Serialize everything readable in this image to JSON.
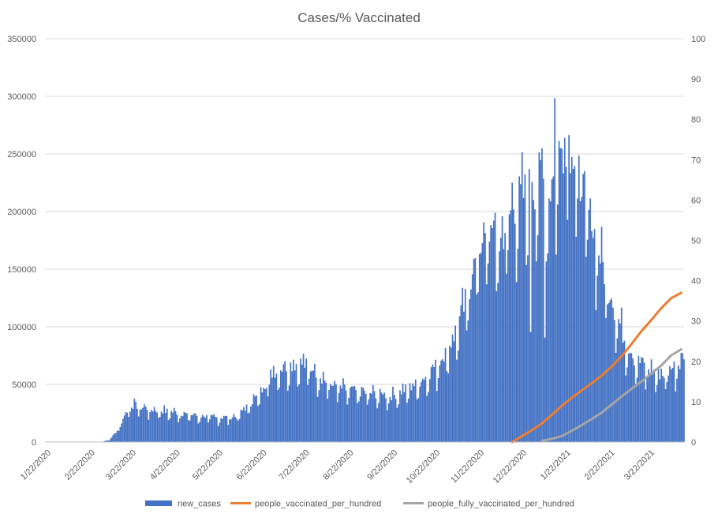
{
  "chart_data": {
    "type": "bar",
    "title": "Cases/% Vaccinated",
    "xlabel": "",
    "ylabel": "",
    "y_left_lim": [
      0,
      350000
    ],
    "y_right_lim": [
      0,
      100
    ],
    "y_left_ticks": [
      "0",
      "50000",
      "100000",
      "150000",
      "200000",
      "250000",
      "300000",
      "350000"
    ],
    "y_right_ticks": [
      "0",
      "10",
      "20",
      "30",
      "40",
      "50",
      "60",
      "70",
      "80",
      "90",
      "100"
    ],
    "x_tick_labels": [
      "1/22/2020",
      "2/22/2020",
      "3/22/2020",
      "4/22/2020",
      "5/22/2020",
      "6/22/2020",
      "7/22/2020",
      "8/22/2020",
      "9/22/2020",
      "10/22/2020",
      "11/22/2020",
      "12/22/2020",
      "1/22/2021",
      "2/22/2021",
      "3/22/2021"
    ],
    "x_range_days": [
      0,
      450
    ],
    "grid": "horizontal",
    "legend_position": "bottom",
    "series": [
      {
        "name": "new_cases",
        "kind": "bar",
        "axis": "left",
        "color": "#4472C4",
        "weekly_points": [
          [
            0,
            0
          ],
          [
            40,
            0
          ],
          [
            45,
            2000
          ],
          [
            50,
            8000
          ],
          [
            55,
            20000
          ],
          [
            60,
            32000
          ],
          [
            66,
            31000
          ],
          [
            75,
            28000
          ],
          [
            90,
            26000
          ],
          [
            105,
            23000
          ],
          [
            120,
            21000
          ],
          [
            135,
            22000
          ],
          [
            150,
            40000
          ],
          [
            160,
            60000
          ],
          [
            170,
            66000
          ],
          [
            180,
            68000
          ],
          [
            190,
            62000
          ],
          [
            200,
            50000
          ],
          [
            215,
            44000
          ],
          [
            230,
            42000
          ],
          [
            245,
            40000
          ],
          [
            255,
            46000
          ],
          [
            265,
            52000
          ],
          [
            275,
            65000
          ],
          [
            285,
            82000
          ],
          [
            295,
            115000
          ],
          [
            305,
            165000
          ],
          [
            315,
            185000
          ],
          [
            320,
            170000
          ],
          [
            330,
            205000
          ],
          [
            340,
            215000
          ],
          [
            350,
            228000
          ],
          [
            355,
            210000
          ],
          [
            362,
            250000
          ],
          [
            367,
            265000
          ],
          [
            372,
            245000
          ],
          [
            380,
            210000
          ],
          [
            390,
            165000
          ],
          [
            400,
            120000
          ],
          [
            408,
            90000
          ],
          [
            415,
            72000
          ],
          [
            425,
            63000
          ],
          [
            435,
            58000
          ],
          [
            440,
            62000
          ],
          [
            445,
            68000
          ],
          [
            450,
            74000
          ]
        ]
      },
      {
        "name": "people_vaccinated_per_hundred",
        "kind": "line",
        "axis": "right",
        "color": "#ED7D31",
        "points": [
          [
            329,
            0.0
          ],
          [
            336,
            1.5
          ],
          [
            343,
            3.0
          ],
          [
            350,
            4.6
          ],
          [
            357,
            6.8
          ],
          [
            364,
            9.0
          ],
          [
            371,
            11.0
          ],
          [
            378,
            12.8
          ],
          [
            385,
            14.6
          ],
          [
            392,
            16.5
          ],
          [
            399,
            18.7
          ],
          [
            406,
            21.3
          ],
          [
            413,
            24.3
          ],
          [
            420,
            27.5
          ],
          [
            427,
            30.3
          ],
          [
            434,
            33.2
          ],
          [
            441,
            35.7
          ],
          [
            448,
            37.0
          ]
        ]
      },
      {
        "name": "people_fully_vaccinated_per_hundred",
        "kind": "line",
        "axis": "right",
        "color": "#A5A5A5",
        "points": [
          [
            350,
            0.3
          ],
          [
            357,
            0.8
          ],
          [
            364,
            1.5
          ],
          [
            371,
            2.8
          ],
          [
            378,
            4.2
          ],
          [
            385,
            5.7
          ],
          [
            392,
            7.3
          ],
          [
            399,
            9.3
          ],
          [
            406,
            11.3
          ],
          [
            413,
            13.2
          ],
          [
            420,
            15.0
          ],
          [
            427,
            17.0
          ],
          [
            434,
            19.0
          ],
          [
            441,
            21.5
          ],
          [
            448,
            23.0
          ]
        ]
      }
    ]
  }
}
